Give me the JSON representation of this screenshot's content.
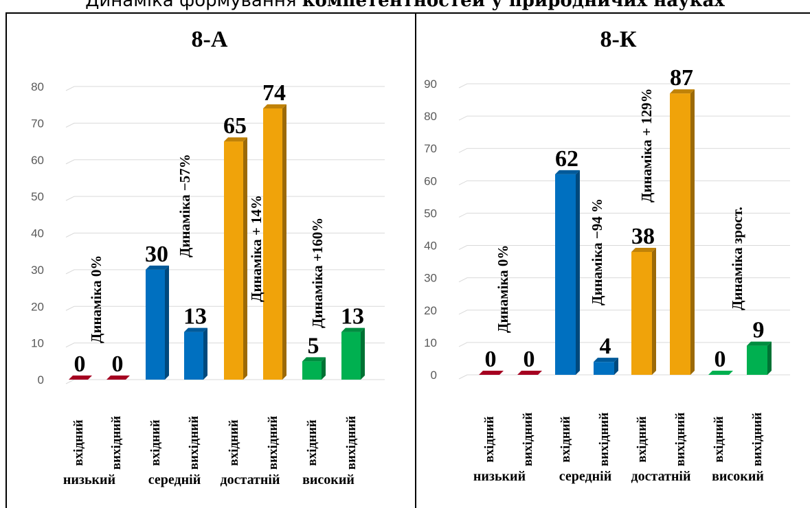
{
  "header": {
    "title_prefix": "Динаміка формування ",
    "title_bold": "компетентностей у природничих науках"
  },
  "chart_data": [
    {
      "type": "bar",
      "title": "8-А",
      "ylim": [
        0,
        80
      ],
      "yticks": [
        "0",
        "10",
        "20",
        "30",
        "40",
        "50",
        "60",
        "70",
        "80"
      ],
      "groups": [
        "низький",
        "середній",
        "достатній",
        "високий"
      ],
      "bar_labels": [
        "вхідний",
        "вихідний",
        "вхідний",
        "вихідний",
        "вхідний",
        "вихідний",
        "вхідний",
        "вихідний"
      ],
      "values": [
        0,
        0,
        30,
        13,
        65,
        74,
        5,
        13
      ],
      "value_labels": [
        "0",
        "0",
        "30",
        "13",
        "65",
        "74",
        "5",
        "13"
      ],
      "bar_colors": [
        "#a50021",
        "#a50021",
        "#0070c0",
        "#0070c0",
        "#f0a30a",
        "#f0a30a",
        "#00b050",
        "#00b050"
      ],
      "dynamics": [
        "Динаміка  0%",
        "Динаміка −57%",
        "Динаміка + 14%",
        "Динаміка +160%"
      ],
      "grid": true
    },
    {
      "type": "bar",
      "title": "8-К",
      "ylim": [
        0,
        90
      ],
      "yticks": [
        "0",
        "10",
        "20",
        "30",
        "40",
        "50",
        "60",
        "70",
        "80",
        "90"
      ],
      "groups": [
        "низький",
        "середній",
        "достатній",
        "високий"
      ],
      "bar_labels": [
        "вхідний",
        "вихідний",
        "вхідний",
        "вихідний",
        "вхідний",
        "вихідний",
        "вхідний",
        "вихідний"
      ],
      "values": [
        0,
        0,
        62,
        4,
        38,
        87,
        0,
        9
      ],
      "value_labels": [
        "0",
        "0",
        "62",
        "4",
        "38",
        "87",
        "0",
        "9"
      ],
      "bar_colors": [
        "#a50021",
        "#a50021",
        "#0070c0",
        "#0070c0",
        "#f0a30a",
        "#f0a30a",
        "#00b050",
        "#00b050"
      ],
      "dynamics": [
        "Динаміка  0%",
        "Динаміка −94 %",
        "Динаміка + 129%",
        "Динаміка зрост."
      ],
      "grid": true
    }
  ]
}
